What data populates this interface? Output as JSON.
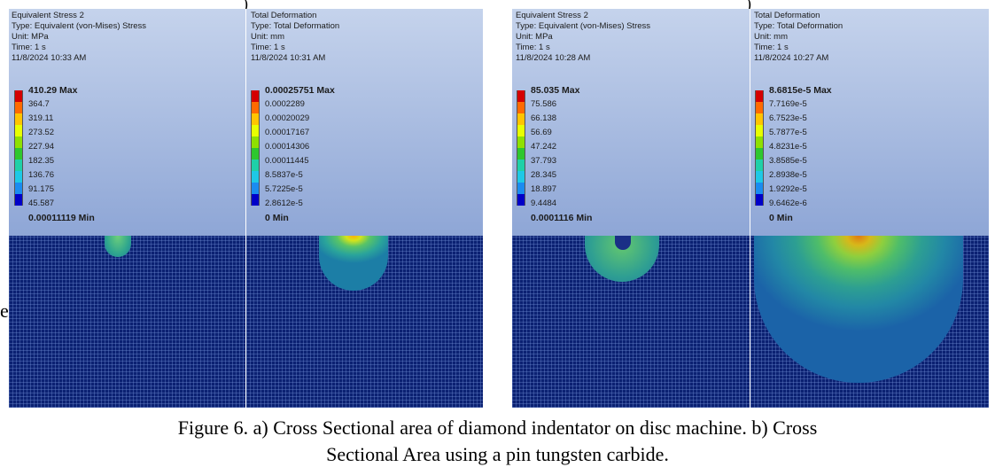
{
  "figure": {
    "top_marks": [
      ")",
      ")"
    ],
    "stray_char": "e",
    "caption_line1": "Figure 6. a) Cross Sectional area of diamond indentator on disc machine. b) Cross",
    "caption_line2": "Sectional Area using a pin tungsten carbide."
  },
  "legend_colors": [
    "#d40000",
    "#ff6a00",
    "#ffc400",
    "#e8ff00",
    "#8fe000",
    "#2ec72e",
    "#1fd0a8",
    "#1ec8e6",
    "#1a8cf0",
    "#0000c8"
  ],
  "plots": [
    {
      "id": "a-stress",
      "info": [
        "Equivalent Stress 2",
        "Type: Equivalent (von-Mises) Stress",
        "Unit: MPa",
        "Time: 1 s",
        "11/8/2024 10:33 AM"
      ],
      "legend": [
        "410.29 Max",
        "364.7",
        "319.11",
        "273.52",
        "227.94",
        "182.35",
        "136.76",
        "91.175",
        "45.587",
        "0.00011119 Min"
      ]
    },
    {
      "id": "a-deformation",
      "info": [
        "Total Deformation",
        "Type: Total Deformation",
        "Unit: mm",
        "Time: 1 s",
        "11/8/2024 10:31 AM"
      ],
      "legend": [
        "0.00025751 Max",
        "0.0002289",
        "0.00020029",
        "0.00017167",
        "0.00014306",
        "0.00011445",
        "8.5837e-5",
        "5.7225e-5",
        "2.8612e-5",
        "0 Min"
      ]
    },
    {
      "id": "b-stress",
      "info": [
        "Equivalent Stress 2",
        "Type: Equivalent (von-Mises) Stress",
        "Unit: MPa",
        "Time: 1 s",
        "11/8/2024 10:28 AM"
      ],
      "legend": [
        "85.035 Max",
        "75.586",
        "66.138",
        "56.69",
        "47.242",
        "37.793",
        "28.345",
        "18.897",
        "9.4484",
        "0.0001116 Min"
      ]
    },
    {
      "id": "b-deformation",
      "info": [
        "Total Deformation",
        "Type: Total Deformation",
        "Unit: mm",
        "Time: 1 s",
        "11/8/2024 10:27 AM"
      ],
      "legend": [
        "8.6815e-5 Max",
        "7.7169e-5",
        "6.7523e-5",
        "5.7877e-5",
        "4.8231e-5",
        "3.8585e-5",
        "2.8938e-5",
        "1.9292e-5",
        "9.6462e-6",
        "0 Min"
      ]
    }
  ]
}
